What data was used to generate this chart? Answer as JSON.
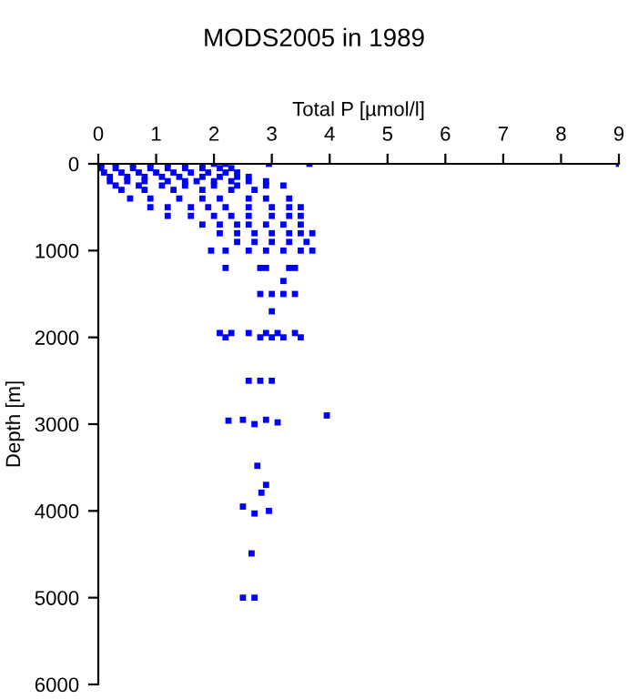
{
  "chart_data": {
    "type": "scatter",
    "title": "MODS2005 in 1989",
    "xlabel": "Total P [µmol/l]",
    "ylabel": "Depth [m]",
    "xlim": [
      0,
      9
    ],
    "xticks": [
      0,
      1,
      2,
      3,
      4,
      5,
      6,
      7,
      8,
      9
    ],
    "ylim": [
      6000,
      0
    ],
    "yticks": [
      0,
      1000,
      2000,
      3000,
      4000,
      5000,
      6000
    ],
    "grid": false,
    "marker": "square",
    "series": [
      {
        "color": "#0000ff",
        "x": [
          0.05,
          0.3,
          0.6,
          0.9,
          1.2,
          1.5,
          1.8,
          2.0,
          2.2,
          2.95,
          3.65,
          9.0,
          0.05,
          0.3,
          0.6,
          0.9,
          1.2,
          1.5,
          1.8,
          2.1,
          2.3,
          0.1,
          0.4,
          0.7,
          1.0,
          1.3,
          1.6,
          1.9,
          2.2,
          2.4,
          0.2,
          0.5,
          0.8,
          1.1,
          1.4,
          1.8,
          2.1,
          2.4,
          2.6,
          0.2,
          0.5,
          0.8,
          1.2,
          1.5,
          1.7,
          2.0,
          2.3,
          2.6,
          2.9,
          0.3,
          0.7,
          1.1,
          1.5,
          2.0,
          2.4,
          2.9,
          3.2,
          0.4,
          0.8,
          1.3,
          1.8,
          2.3,
          2.7,
          0.55,
          0.9,
          1.4,
          1.8,
          2.1,
          2.6,
          2.9,
          3.3,
          0.9,
          1.2,
          1.6,
          1.9,
          2.2,
          2.6,
          3.0,
          3.3,
          3.5,
          1.2,
          1.6,
          2.0,
          2.3,
          2.6,
          3.0,
          3.3,
          3.5,
          1.8,
          2.1,
          2.4,
          2.6,
          2.9,
          3.2,
          3.5,
          2.1,
          2.4,
          2.7,
          3.0,
          3.3,
          3.5,
          3.7,
          2.4,
          2.7,
          3.0,
          3.3,
          3.6,
          1.95,
          2.2,
          2.6,
          2.9,
          3.2,
          3.5,
          3.7,
          2.2,
          2.8,
          2.9,
          3.3,
          3.4,
          3.2,
          2.8,
          3.0,
          3.2,
          3.4,
          3.0,
          2.1,
          2.3,
          2.6,
          2.9,
          3.1,
          3.4,
          2.2,
          2.8,
          3.0,
          3.2,
          3.5,
          2.6,
          2.8,
          3.0,
          2.25,
          2.5,
          2.7,
          2.9,
          3.1,
          3.95,
          2.75,
          2.9,
          2.82,
          2.5,
          2.7,
          2.95,
          2.65,
          2.5,
          2.7
        ],
        "values": [
          0,
          0,
          0,
          0,
          0,
          0,
          0,
          0,
          0,
          0,
          0,
          0,
          50,
          50,
          50,
          50,
          50,
          50,
          50,
          50,
          50,
          100,
          100,
          100,
          100,
          100,
          100,
          100,
          100,
          100,
          150,
          150,
          150,
          150,
          150,
          150,
          150,
          150,
          150,
          200,
          200,
          200,
          200,
          200,
          200,
          200,
          200,
          200,
          200,
          250,
          250,
          250,
          250,
          250,
          250,
          250,
          250,
          300,
          300,
          300,
          300,
          300,
          300,
          400,
          400,
          400,
          400,
          400,
          400,
          400,
          400,
          500,
          500,
          500,
          500,
          500,
          500,
          500,
          500,
          500,
          600,
          600,
          600,
          600,
          600,
          600,
          600,
          600,
          700,
          700,
          700,
          700,
          700,
          700,
          700,
          800,
          800,
          800,
          800,
          800,
          800,
          800,
          900,
          900,
          900,
          900,
          900,
          1000,
          1000,
          1000,
          1000,
          1000,
          1000,
          1000,
          1200,
          1200,
          1200,
          1200,
          1200,
          1350,
          1500,
          1500,
          1500,
          1500,
          1700,
          1950,
          1950,
          1950,
          1950,
          1950,
          1950,
          2000,
          2000,
          2000,
          2000,
          2000,
          2500,
          2500,
          2500,
          2960,
          2950,
          3000,
          2950,
          2980,
          2900,
          3480,
          3700,
          3790,
          3950,
          4030,
          4000,
          4490,
          5000,
          5000
        ]
      }
    ]
  }
}
